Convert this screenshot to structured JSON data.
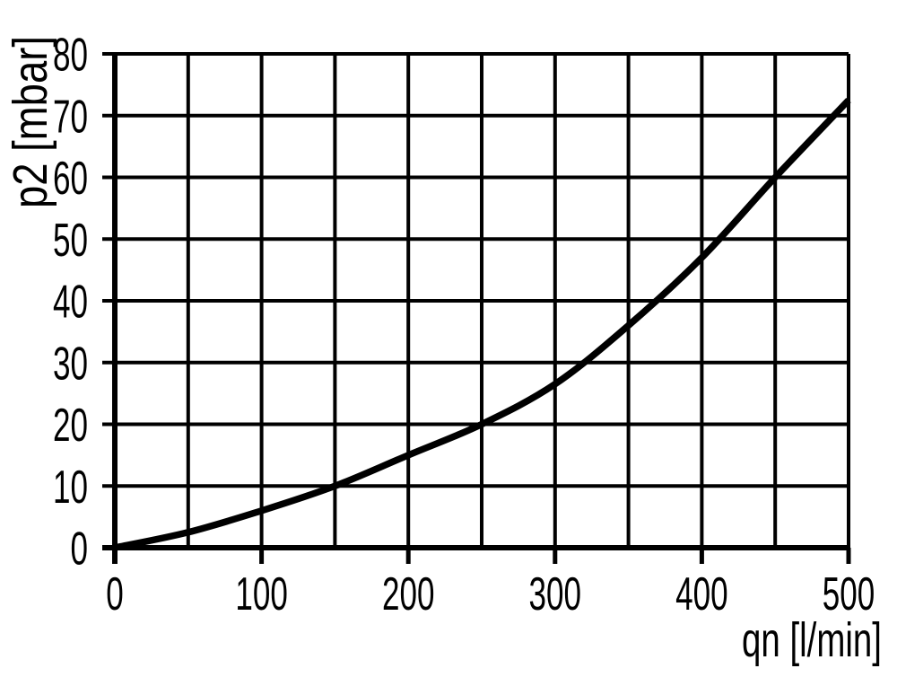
{
  "page": {
    "background": "#ffffff"
  },
  "chart_data": {
    "type": "line",
    "title": "",
    "xlabel": "qn [l/min]",
    "ylabel": "p2 [mbar]",
    "x": [
      0,
      50,
      100,
      150,
      200,
      250,
      300,
      350,
      400,
      450,
      500
    ],
    "values": [
      0,
      2.5,
      6,
      10,
      15,
      20,
      26.5,
      36,
      47,
      60,
      72.5
    ],
    "xlim": [
      0,
      500
    ],
    "ylim": [
      0,
      80
    ],
    "xticks": [
      0,
      100,
      200,
      300,
      400,
      500
    ],
    "yticks": [
      0,
      10,
      20,
      30,
      40,
      50,
      60,
      70,
      80
    ],
    "x_grid_step": 50,
    "y_grid_step": 10,
    "grid": true,
    "legend": false,
    "colors": {
      "line": "#000000",
      "grid": "#000000",
      "axis": "#000000",
      "text": "#000000",
      "background": "#ffffff"
    }
  }
}
